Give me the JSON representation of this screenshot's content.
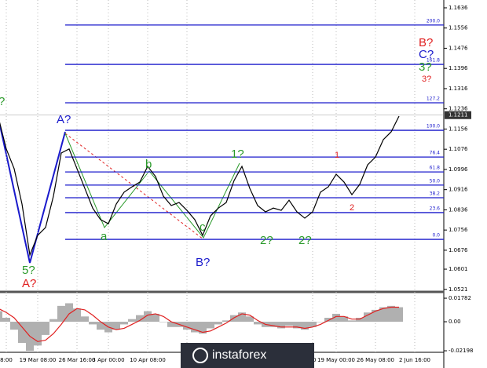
{
  "chart_data": {
    "type": "line",
    "categories": [
      null,
      "8:00",
      null,
      null,
      null,
      "19 Mar 08:00",
      null,
      null,
      null,
      null,
      "26 Mar 16:00",
      null,
      null,
      null,
      "3 Apr 00:00",
      null,
      null,
      null,
      null,
      "10 Apr 08:00",
      null,
      null,
      null,
      null,
      "17",
      null,
      null,
      null,
      null,
      null,
      null,
      null,
      null,
      null,
      null,
      null,
      null,
      null,
      null,
      null,
      "00",
      null,
      null,
      "19 May 00:00",
      null,
      null,
      null,
      null,
      "26 May 08:00",
      null,
      null,
      null,
      null,
      "2 Jun 16:00"
    ],
    "series": [
      {
        "color": "#000000",
        "values": [
          1.1201,
          1.1077,
          1.0999,
          1.0859,
          1.0657,
          1.0735,
          1.0766,
          1.089,
          1.1061,
          1.1077,
          1.0999,
          1.0921,
          1.0843,
          1.0797,
          1.0781,
          1.0859,
          1.0906,
          1.0927,
          1.0946,
          1.1008,
          1.0968,
          1.089,
          1.0853,
          1.0865,
          1.0834,
          1.0797,
          1.0735,
          1.0812,
          1.0843,
          1.0865,
          1.0952,
          1.1008,
          1.0921,
          1.0853,
          1.0828,
          1.0843,
          1.0834,
          1.0874,
          1.0828,
          1.0803,
          1.0828,
          1.0906,
          1.0927,
          1.0977,
          1.0946,
          1.0896,
          1.0937,
          1.1014,
          1.1045,
          1.1114,
          1.1145,
          1.1207,
          null,
          null
        ]
      }
    ],
    "ylim": [
      1.0511,
      1.1667
    ],
    "yticks": [
      1.1636,
      1.1556,
      1.1476,
      1.1396,
      1.1316,
      1.1236,
      1.1156,
      1.1076,
      1.0996,
      1.0916,
      1.0836,
      1.0756,
      1.0676,
      1.0601,
      1.0521
    ],
    "last_price": 1.1211,
    "fib_levels": [
      {
        "label": "200.0",
        "price": 1.1568
      },
      {
        "label": "161.8",
        "price": 1.1412
      },
      {
        "label": "127.2",
        "price": 1.126
      },
      {
        "label": "100.0",
        "price": 1.1151
      },
      {
        "label": "76.4",
        "price": 1.1045
      },
      {
        "label": "61.8",
        "price": 1.0986
      },
      {
        "label": "50.0",
        "price": 1.0934
      },
      {
        "label": "38.2",
        "price": 1.0884
      },
      {
        "label": "23.6",
        "price": 1.0825
      },
      {
        "label": "0.0",
        "price": 1.0719
      }
    ],
    "fib_color": "#1a1acc",
    "annotations": [
      {
        "text": "?",
        "color": "#2a9a2a"
      },
      {
        "text": "A?",
        "color": "#1a1acc"
      },
      {
        "text": "b",
        "color": "#2a9a2a"
      },
      {
        "text": "a",
        "color": "#2a9a2a"
      },
      {
        "text": "1?",
        "color": "#2a9a2a"
      },
      {
        "text": "c",
        "color": "#2a9a2a"
      },
      {
        "text": "B?",
        "color": "#1a1acc"
      },
      {
        "text": "2?",
        "color": "#2a9a2a"
      },
      {
        "text": "2?",
        "color": "#2a9a2a"
      },
      {
        "text": "1",
        "color": "#e02020"
      },
      {
        "text": "2",
        "color": "#e02020"
      },
      {
        "text": "5?",
        "color": "#2a9a2a"
      },
      {
        "text": "A?",
        "color": "#e02020"
      },
      {
        "text": "B?",
        "color": "#e02020"
      },
      {
        "text": "C?",
        "color": "#1a1acc"
      },
      {
        "text": "3?",
        "color": "#2a9a2a"
      },
      {
        "text": "3?",
        "color": "#e02020"
      }
    ],
    "indicator": {
      "type": "bar",
      "ylim": [
        -0.0267,
        0.0226
      ],
      "yticks": [
        0.01782,
        {
          "value": 0,
          "label": "0.00"
        },
        -0.02198
      ],
      "series": [
        {
          "color": "#b0b0b0",
          "values": [
            0.008,
            0.003,
            -0.006,
            -0.016,
            -0.022,
            -0.018,
            -0.01,
            0.002,
            0.012,
            0.014,
            0.01,
            0.004,
            -0.002,
            -0.006,
            -0.008,
            -0.006,
            -0.002,
            0.002,
            0.005,
            0.008,
            0.006,
            0.0,
            -0.004,
            -0.004,
            -0.006,
            -0.008,
            -0.009,
            -0.005,
            -0.002,
            0.001,
            0.005,
            0.007,
            0.004,
            -0.002,
            -0.004,
            -0.004,
            -0.005,
            -0.003,
            -0.005,
            -0.006,
            -0.004,
            0.0,
            0.003,
            0.006,
            0.004,
            0.001,
            0.003,
            0.007,
            0.009,
            0.011,
            0.012,
            0.011,
            null,
            null
          ]
        },
        {
          "color": "#e02020",
          "values": [
            0.01,
            0.007,
            0.003,
            -0.004,
            -0.011,
            -0.015,
            -0.014,
            -0.009,
            -0.002,
            0.006,
            0.01,
            0.009,
            0.005,
            0.0,
            -0.004,
            -0.006,
            -0.005,
            -0.002,
            0.001,
            0.005,
            0.006,
            0.004,
            0.0,
            -0.002,
            -0.004,
            -0.006,
            -0.008,
            -0.007,
            -0.004,
            -0.001,
            0.003,
            0.006,
            0.005,
            0.001,
            -0.002,
            -0.003,
            -0.004,
            -0.004,
            -0.004,
            -0.005,
            -0.004,
            -0.002,
            0.001,
            0.004,
            0.004,
            0.002,
            0.002,
            0.005,
            0.008,
            0.01,
            0.011,
            0.011,
            null,
            null
          ]
        }
      ]
    },
    "watermark": "instaforex"
  }
}
